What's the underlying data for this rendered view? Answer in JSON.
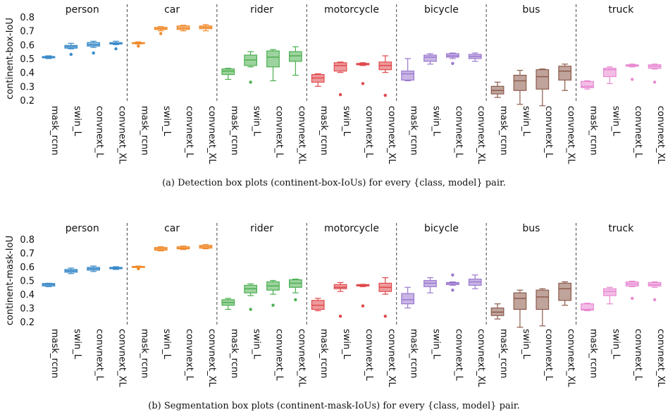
{
  "captions": [
    "(a) Detection box plots (continent-box-IoUs) for every {class, model} pair.",
    "(b) Segmentation box plots (continent-mask-IoUs) for every {class, model} pair."
  ],
  "colors": {
    "person": "#3b8bc9",
    "car": "#f0892a",
    "rider": "#4caf50",
    "motorcycle": "#e0484b",
    "bicycle": "#9b79cf",
    "bus": "#8c5a4b",
    "truck": "#e889d2"
  },
  "chart_data": [
    {
      "type": "box",
      "ylabel": "continent-box-IoU",
      "ylim": [
        0.15,
        0.85
      ],
      "yticks": [
        "0.2",
        "0.3",
        "0.4",
        "0.5",
        "0.6",
        "0.7",
        "0.8"
      ],
      "models": [
        "mask_rcnn",
        "swin_L",
        "convnext_L",
        "convnext_XL"
      ],
      "groups": [
        {
          "name": "person",
          "boxes": [
            {
              "min": 0.5,
              "q1": 0.505,
              "med": 0.51,
              "q3": 0.515,
              "max": 0.52,
              "out": []
            },
            {
              "min": 0.57,
              "q1": 0.575,
              "med": 0.585,
              "q3": 0.595,
              "max": 0.61,
              "out": [
                0.53
              ]
            },
            {
              "min": 0.58,
              "q1": 0.59,
              "med": 0.6,
              "q3": 0.615,
              "max": 0.625,
              "out": [
                0.54
              ]
            },
            {
              "min": 0.6,
              "q1": 0.605,
              "med": 0.61,
              "q3": 0.615,
              "max": 0.625,
              "out": [
                0.57
              ]
            }
          ]
        },
        {
          "name": "car",
          "boxes": [
            {
              "min": 0.605,
              "q1": 0.61,
              "med": 0.612,
              "q3": 0.615,
              "max": 0.62,
              "out": [
                0.59
              ]
            },
            {
              "min": 0.7,
              "q1": 0.71,
              "med": 0.715,
              "q3": 0.725,
              "max": 0.73,
              "out": [
                0.68
              ]
            },
            {
              "min": 0.7,
              "q1": 0.71,
              "med": 0.72,
              "q3": 0.735,
              "max": 0.74,
              "out": []
            },
            {
              "min": 0.7,
              "q1": 0.715,
              "med": 0.725,
              "q3": 0.735,
              "max": 0.745,
              "out": []
            }
          ]
        },
        {
          "name": "rider",
          "boxes": [
            {
              "min": 0.35,
              "q1": 0.385,
              "med": 0.41,
              "q3": 0.425,
              "max": 0.43,
              "out": []
            },
            {
              "min": 0.44,
              "q1": 0.45,
              "med": 0.49,
              "q3": 0.525,
              "max": 0.55,
              "out": [
                0.33
              ]
            },
            {
              "min": 0.34,
              "q1": 0.44,
              "med": 0.51,
              "q3": 0.555,
              "max": 0.565,
              "out": []
            },
            {
              "min": 0.38,
              "q1": 0.48,
              "med": 0.52,
              "q3": 0.55,
              "max": 0.585,
              "out": []
            }
          ]
        },
        {
          "name": "motorcycle",
          "boxes": [
            {
              "min": 0.3,
              "q1": 0.33,
              "med": 0.36,
              "q3": 0.385,
              "max": 0.39,
              "out": []
            },
            {
              "min": 0.4,
              "q1": 0.41,
              "med": 0.45,
              "q3": 0.47,
              "max": 0.475,
              "out": [
                0.24
              ]
            },
            {
              "min": 0.45,
              "q1": 0.455,
              "med": 0.46,
              "q3": 0.465,
              "max": 0.47,
              "out": [
                0.32
              ]
            },
            {
              "min": 0.4,
              "q1": 0.42,
              "med": 0.45,
              "q3": 0.475,
              "max": 0.52,
              "out": [
                0.235
              ]
            }
          ]
        },
        {
          "name": "bicycle",
          "boxes": [
            {
              "min": 0.34,
              "q1": 0.345,
              "med": 0.39,
              "q3": 0.41,
              "max": 0.5,
              "out": []
            },
            {
              "min": 0.46,
              "q1": 0.48,
              "med": 0.51,
              "q3": 0.525,
              "max": 0.535,
              "out": []
            },
            {
              "min": 0.5,
              "q1": 0.51,
              "med": 0.52,
              "q3": 0.535,
              "max": 0.54,
              "out": [
                0.465
              ]
            },
            {
              "min": 0.48,
              "q1": 0.5,
              "med": 0.515,
              "q3": 0.53,
              "max": 0.54,
              "out": []
            }
          ]
        },
        {
          "name": "bus",
          "boxes": [
            {
              "min": 0.22,
              "q1": 0.245,
              "med": 0.27,
              "q3": 0.3,
              "max": 0.33,
              "out": []
            },
            {
              "min": 0.17,
              "q1": 0.27,
              "med": 0.34,
              "q3": 0.38,
              "max": 0.415,
              "out": []
            },
            {
              "min": 0.16,
              "q1": 0.28,
              "med": 0.37,
              "q3": 0.42,
              "max": 0.425,
              "out": []
            },
            {
              "min": 0.27,
              "q1": 0.345,
              "med": 0.41,
              "q3": 0.445,
              "max": 0.46,
              "out": []
            }
          ]
        },
        {
          "name": "truck",
          "boxes": [
            {
              "min": 0.28,
              "q1": 0.29,
              "med": 0.3,
              "q3": 0.335,
              "max": 0.34,
              "out": []
            },
            {
              "min": 0.32,
              "q1": 0.37,
              "med": 0.42,
              "q3": 0.43,
              "max": 0.44,
              "out": []
            },
            {
              "min": 0.44,
              "q1": 0.445,
              "med": 0.45,
              "q3": 0.455,
              "max": 0.46,
              "out": [
                0.35
              ]
            },
            {
              "min": 0.425,
              "q1": 0.43,
              "med": 0.445,
              "q3": 0.455,
              "max": 0.46,
              "out": [
                0.33
              ]
            }
          ]
        }
      ]
    },
    {
      "type": "box",
      "ylabel": "continent-mask-IoU",
      "ylim": [
        0.15,
        0.85
      ],
      "yticks": [
        "0.2",
        "0.3",
        "0.4",
        "0.5",
        "0.6",
        "0.7",
        "0.8"
      ],
      "models": [
        "mask_rcnn",
        "swin_L",
        "convnext_L",
        "convnext_XL"
      ],
      "groups": [
        {
          "name": "person",
          "boxes": [
            {
              "min": 0.455,
              "q1": 0.46,
              "med": 0.47,
              "q3": 0.478,
              "max": 0.48,
              "out": []
            },
            {
              "min": 0.55,
              "q1": 0.56,
              "med": 0.57,
              "q3": 0.58,
              "max": 0.59,
              "out": []
            },
            {
              "min": 0.565,
              "q1": 0.575,
              "med": 0.585,
              "q3": 0.595,
              "max": 0.605,
              "out": []
            },
            {
              "min": 0.58,
              "q1": 0.585,
              "med": 0.59,
              "q3": 0.595,
              "max": 0.6,
              "out": []
            }
          ]
        },
        {
          "name": "car",
          "boxes": [
            {
              "min": 0.595,
              "q1": 0.598,
              "med": 0.6,
              "q3": 0.602,
              "max": 0.605,
              "out": [
                0.585
              ]
            },
            {
              "min": 0.715,
              "q1": 0.72,
              "med": 0.73,
              "q3": 0.74,
              "max": 0.745,
              "out": []
            },
            {
              "min": 0.725,
              "q1": 0.73,
              "med": 0.735,
              "q3": 0.745,
              "max": 0.75,
              "out": []
            },
            {
              "min": 0.73,
              "q1": 0.735,
              "med": 0.745,
              "q3": 0.755,
              "max": 0.76,
              "out": []
            }
          ]
        },
        {
          "name": "rider",
          "boxes": [
            {
              "min": 0.29,
              "q1": 0.32,
              "med": 0.34,
              "q3": 0.36,
              "max": 0.37,
              "out": []
            },
            {
              "min": 0.39,
              "q1": 0.41,
              "med": 0.44,
              "q3": 0.465,
              "max": 0.475,
              "out": [
                0.29
              ]
            },
            {
              "min": 0.4,
              "q1": 0.43,
              "med": 0.46,
              "q3": 0.49,
              "max": 0.5,
              "out": [
                0.32
              ]
            },
            {
              "min": 0.41,
              "q1": 0.45,
              "med": 0.48,
              "q3": 0.505,
              "max": 0.51,
              "out": [
                0.36
              ]
            }
          ]
        },
        {
          "name": "motorcycle",
          "boxes": [
            {
              "min": 0.28,
              "q1": 0.29,
              "med": 0.32,
              "q3": 0.355,
              "max": 0.37,
              "out": []
            },
            {
              "min": 0.42,
              "q1": 0.44,
              "med": 0.45,
              "q3": 0.47,
              "max": 0.485,
              "out": [
                0.24
              ]
            },
            {
              "min": 0.455,
              "q1": 0.46,
              "med": 0.465,
              "q3": 0.47,
              "max": 0.472,
              "out": [
                0.315
              ]
            },
            {
              "min": 0.4,
              "q1": 0.42,
              "med": 0.45,
              "q3": 0.48,
              "max": 0.52,
              "out": [
                0.24
              ]
            }
          ]
        },
        {
          "name": "bicycle",
          "boxes": [
            {
              "min": 0.3,
              "q1": 0.33,
              "med": 0.36,
              "q3": 0.405,
              "max": 0.45,
              "out": []
            },
            {
              "min": 0.41,
              "q1": 0.455,
              "med": 0.48,
              "q3": 0.5,
              "max": 0.52,
              "out": []
            },
            {
              "min": 0.465,
              "q1": 0.47,
              "med": 0.48,
              "q3": 0.485,
              "max": 0.49,
              "out": [
                0.54,
                0.43
              ]
            },
            {
              "min": 0.44,
              "q1": 0.465,
              "med": 0.49,
              "q3": 0.51,
              "max": 0.54,
              "out": []
            }
          ]
        },
        {
          "name": "bus",
          "boxes": [
            {
              "min": 0.22,
              "q1": 0.245,
              "med": 0.27,
              "q3": 0.3,
              "max": 0.33,
              "out": []
            },
            {
              "min": 0.16,
              "q1": 0.29,
              "med": 0.37,
              "q3": 0.41,
              "max": 0.43,
              "out": []
            },
            {
              "min": 0.17,
              "q1": 0.29,
              "med": 0.38,
              "q3": 0.43,
              "max": 0.44,
              "out": []
            },
            {
              "min": 0.32,
              "q1": 0.355,
              "med": 0.44,
              "q3": 0.48,
              "max": 0.49,
              "out": []
            }
          ]
        },
        {
          "name": "truck",
          "boxes": [
            {
              "min": 0.28,
              "q1": 0.285,
              "med": 0.29,
              "q3": 0.33,
              "max": 0.335,
              "out": []
            },
            {
              "min": 0.33,
              "q1": 0.39,
              "med": 0.42,
              "q3": 0.44,
              "max": 0.45,
              "out": []
            },
            {
              "min": 0.455,
              "q1": 0.46,
              "med": 0.475,
              "q3": 0.49,
              "max": 0.495,
              "out": [
                0.37
              ]
            },
            {
              "min": 0.45,
              "q1": 0.46,
              "med": 0.47,
              "q3": 0.485,
              "max": 0.49,
              "out": [
                0.36
              ]
            }
          ]
        }
      ]
    }
  ]
}
